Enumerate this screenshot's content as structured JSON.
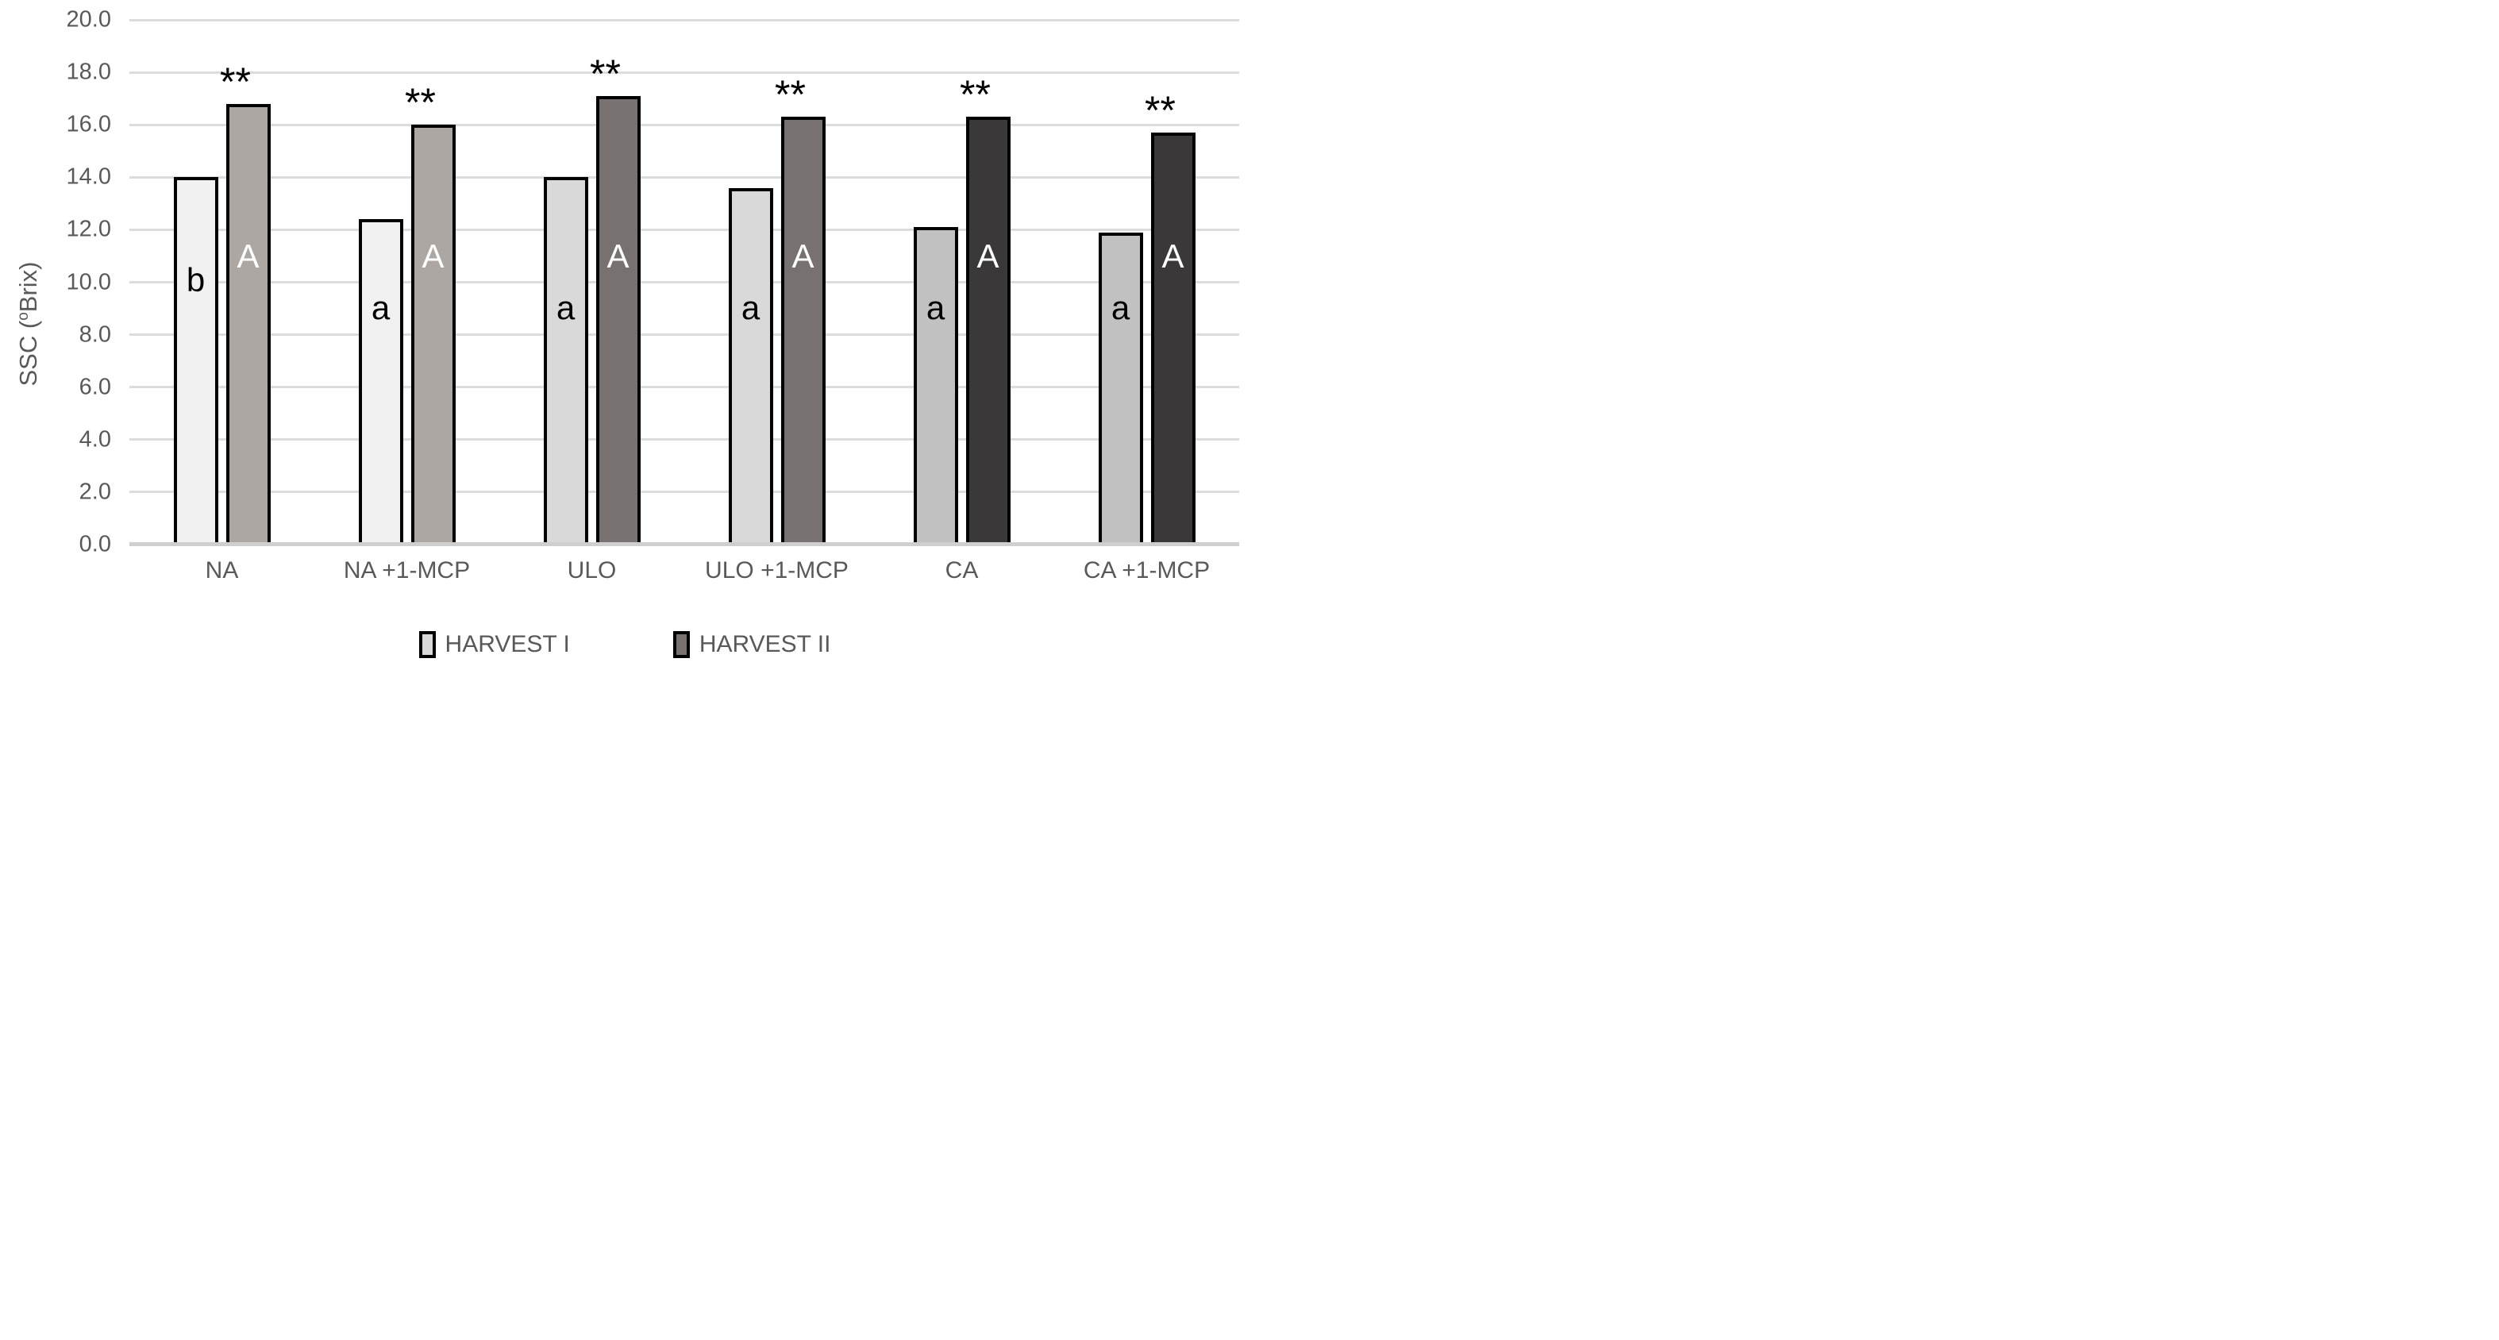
{
  "chart_data": {
    "type": "bar",
    "title": "",
    "ylabel": {
      "prefix": "SSC (",
      "sup": "o",
      "suffix": "Brix)"
    },
    "xlabel": "",
    "ylim": [
      0,
      20
    ],
    "ytick_step": 2,
    "ytick_labels": [
      "20.0",
      "18.0",
      "16.0",
      "14.0",
      "12.0",
      "10.0",
      "8.0",
      "6.0",
      "4.0",
      "2.0",
      "0.0"
    ],
    "grid": true,
    "legend_position": "bottom",
    "categories": [
      "NA",
      "NA +1-MCP",
      "ULO",
      "ULO +1-MCP",
      "CA",
      "CA +1-MCP"
    ],
    "series": [
      {
        "name": "HARVEST I",
        "values": [
          14.0,
          12.4,
          14.0,
          13.6,
          12.1,
          11.9
        ],
        "letters": [
          "b",
          "a",
          "a",
          "a",
          "a",
          "a"
        ],
        "letter_color": "#000000",
        "fills": [
          "#f1f1f1",
          "#f1f1f1",
          "#d9d9d9",
          "#d9d9d9",
          "#c1c1c1",
          "#c1c1c1"
        ]
      },
      {
        "name": "HARVEST II",
        "values": [
          16.8,
          16.0,
          17.1,
          16.3,
          16.3,
          15.7
        ],
        "letters": [
          "A",
          "A",
          "A",
          "A",
          "A",
          "A"
        ],
        "letter_color": "#ffffff",
        "fills": [
          "#aca7a3",
          "#aca7a3",
          "#777170",
          "#777170",
          "#3a3838",
          "#3a3838"
        ]
      }
    ],
    "significance_markers": [
      "**",
      "**",
      "**",
      "**",
      "**",
      "**"
    ],
    "colors": {
      "gridline": "#dcdcdc",
      "axis_line": "#cfcfcf",
      "bar_border": "#000000",
      "text": "#595959"
    }
  },
  "legend": {
    "items": [
      {
        "label": "HARVEST I",
        "swatch": "#d9d9d9"
      },
      {
        "label": "HARVEST II",
        "swatch": "#777170"
      }
    ]
  }
}
